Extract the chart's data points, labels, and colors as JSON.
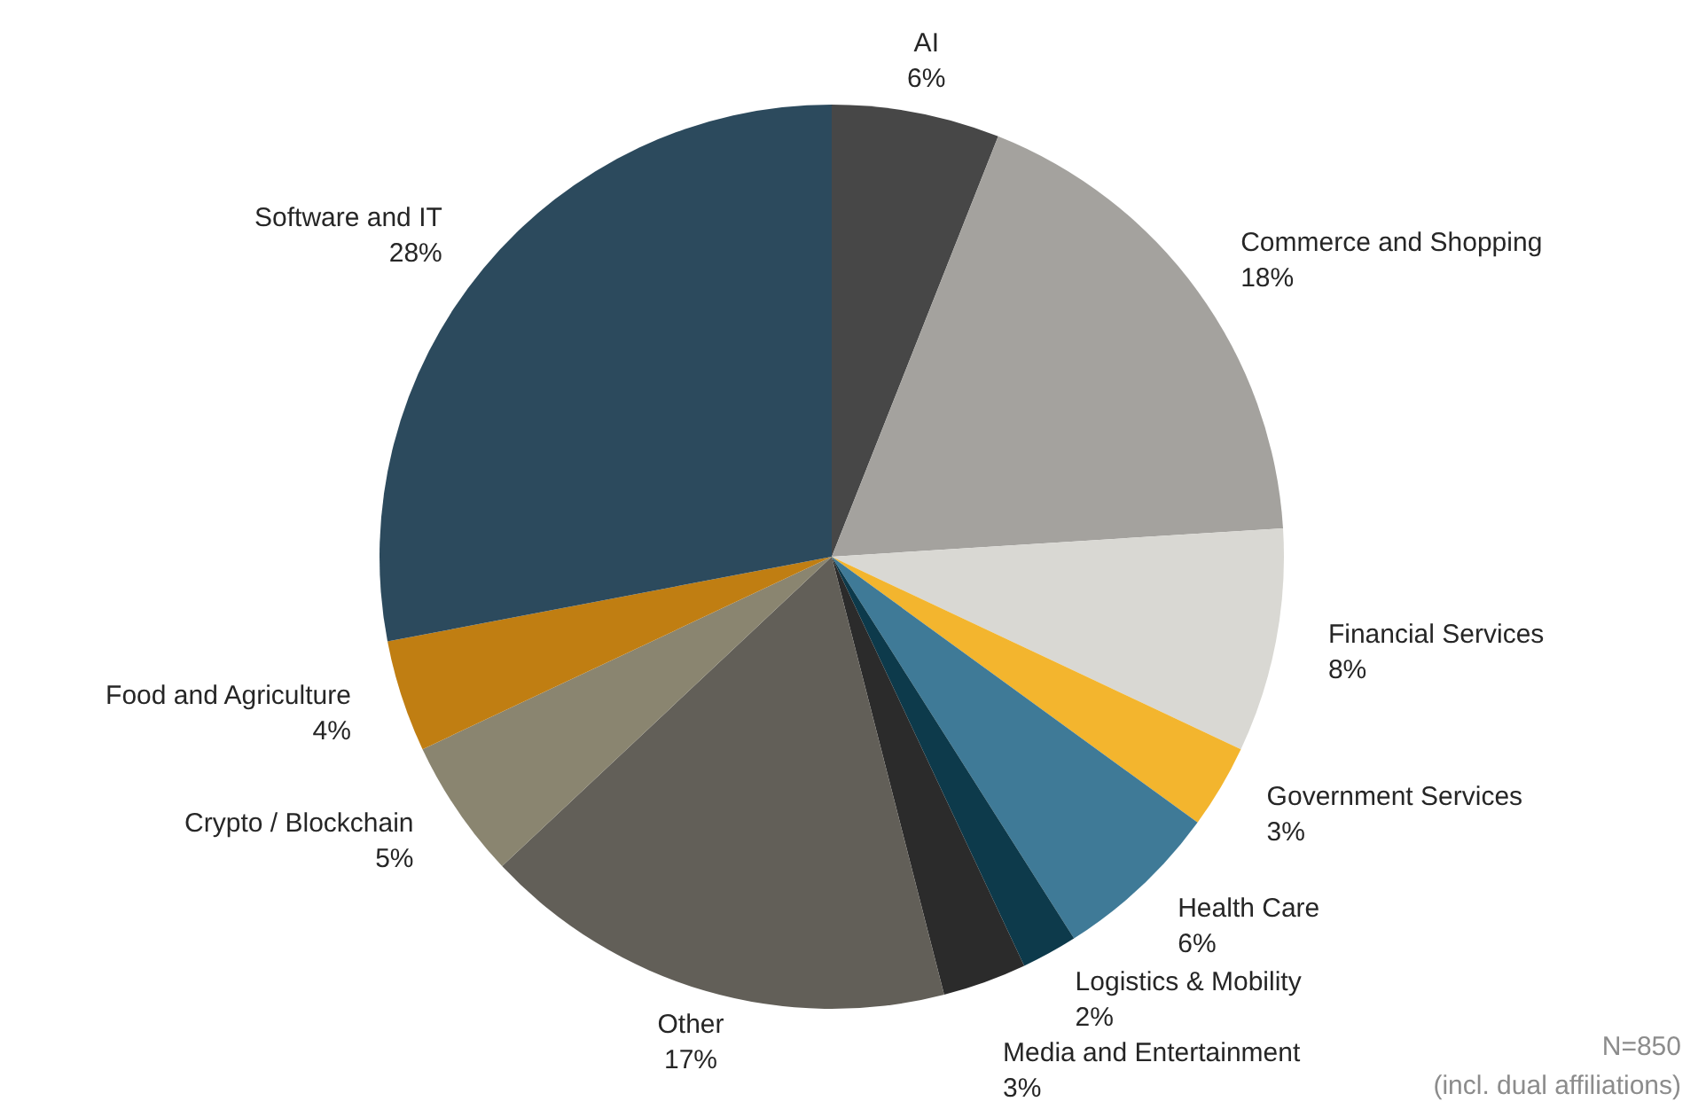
{
  "chart_data": {
    "type": "pie",
    "categories": [
      "AI",
      "Commerce and Shopping",
      "Financial Services",
      "Government Services",
      "Health Care",
      "Logistics & Mobility",
      "Media and Entertainment",
      "Other",
      "Crypto / Blockchain",
      "Food and Agriculture",
      "Software and IT"
    ],
    "values": [
      6,
      18,
      8,
      3,
      6,
      2,
      3,
      17,
      5,
      4,
      28
    ],
    "value_labels": [
      "6%",
      "18%",
      "8%",
      "3%",
      "6%",
      "2%",
      "3%",
      "17%",
      "5%",
      "4%",
      "28%"
    ],
    "colors": [
      "#474747",
      "#a4a29e",
      "#d9d8d3",
      "#f3b52e",
      "#3f7a97",
      "#0d3a4b",
      "#2b2b2b",
      "#625f58",
      "#8a8570",
      "#c07e12",
      "#2c4a5d"
    ],
    "annotations": [
      "N=850",
      "(incl. dual affiliations)"
    ]
  }
}
